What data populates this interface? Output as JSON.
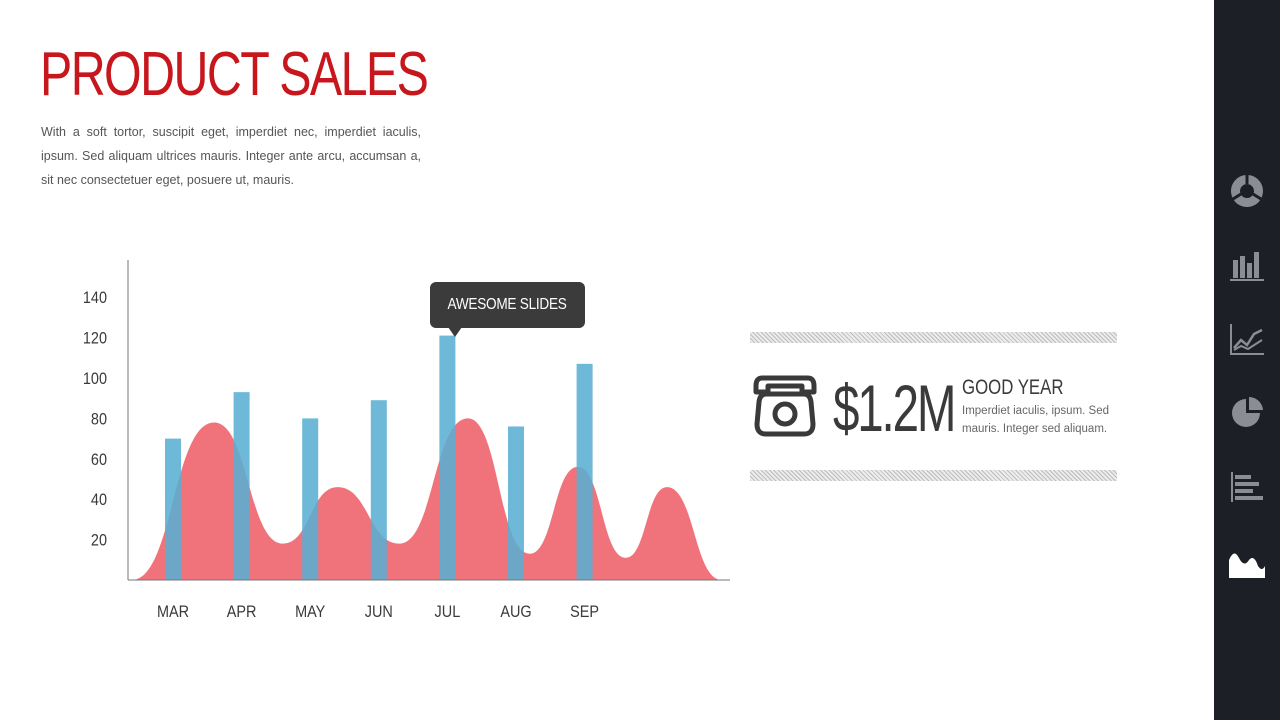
{
  "slide": {
    "title": "PRODUCT SALES",
    "description": "With a soft tortor, suscipit eget, imperdiet nec, imperdiet iaculis, ipsum. Sed aliquam ultrices mauris. Integer ante arcu, accumsan a, sit nec consectetuer eget, posuere ut, mauris."
  },
  "callout": {
    "text": "AWESOME SLIDES"
  },
  "stat": {
    "value": "$1.2M",
    "heading": "GOOD YEAR",
    "text": "Imperdiet iaculis, ipsum. Sed mauris. Integer sed aliquam.",
    "icon": "telephone-icon"
  },
  "sidebar": {
    "icons": [
      "donut-chart-icon",
      "bar-chart-icon",
      "line-chart-icon",
      "pie-chart-icon",
      "horizontal-bar-chart-icon",
      "area-chart-icon"
    ],
    "active_index": 5,
    "active_color": "#ffffff",
    "inactive_color": "#8a8d92"
  },
  "colors": {
    "accent": "#c8161d",
    "bar": "#5aaed3",
    "area": "#ef6770"
  },
  "chart_data": {
    "type": "bar",
    "categories": [
      "MAR",
      "APR",
      "MAY",
      "JUN",
      "JUL",
      "AUG",
      "SEP"
    ],
    "yticks": [
      20,
      40,
      60,
      80,
      100,
      120,
      140
    ],
    "ylim": [
      0,
      160
    ],
    "series": [
      {
        "type": "bar",
        "values": [
          70,
          93,
          80,
          89,
          121,
          76,
          107
        ]
      },
      {
        "type": "area",
        "x": [
          -0.6,
          0.6,
          1.6,
          2.4,
          3.3,
          4.3,
          5.2,
          5.9,
          6.6,
          7.2,
          8.0
        ],
        "y": [
          0,
          78,
          18,
          46,
          18,
          80,
          13,
          56,
          11,
          46,
          0
        ]
      }
    ],
    "annotations": [
      {
        "text": "AWESOME SLIDES",
        "category": "JUL"
      }
    ]
  }
}
